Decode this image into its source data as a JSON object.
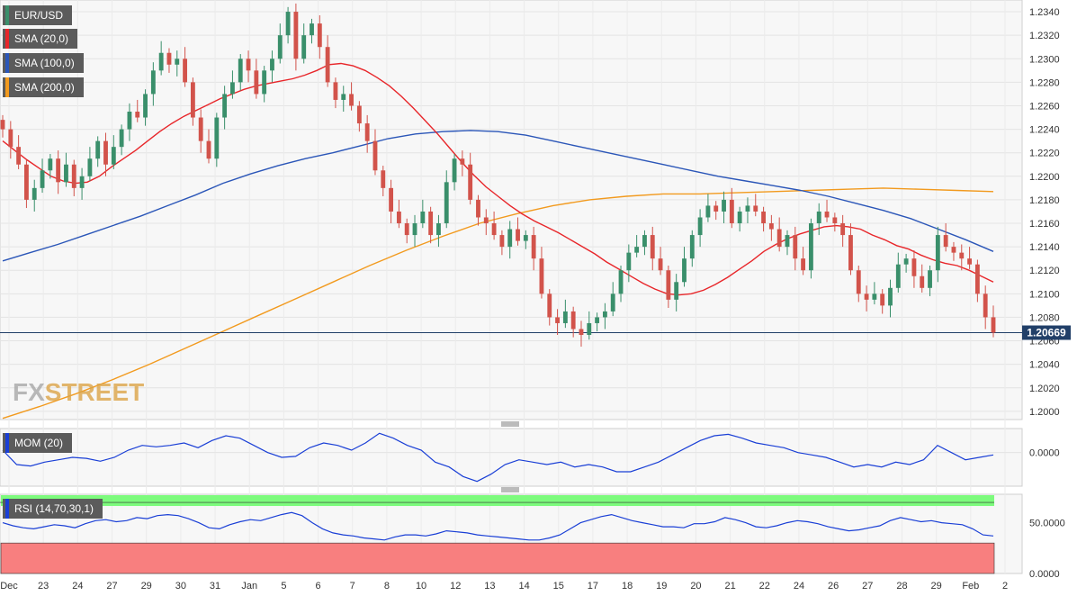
{
  "legend": {
    "symbol": "EUR/USD",
    "sma20": "SMA (20,0)",
    "sma100": "SMA (100,0)",
    "sma200": "SMA (200,0)"
  },
  "colors": {
    "up": "#3a8f6b",
    "down": "#d2534b",
    "sma20": "#e8262a",
    "sma100": "#2b56b8",
    "sma200": "#f29a1e",
    "price_line": "#213f68",
    "mom_line": "#1a3fd6",
    "rsi_line": "#1a3fd6",
    "rsi_band_top": "#7dfb7d",
    "rsi_band_bottom": "#f87f7f",
    "watermark": "#dca447"
  },
  "watermark": {
    "part1": "FX",
    "part2": "STREET"
  },
  "current_price": "1.20669",
  "mom": {
    "label": "MOM (20)"
  },
  "rsi": {
    "label": "RSI (14,70,30,1)"
  },
  "chart_data": [
    {
      "type": "candlestick",
      "title": "EUR/USD",
      "x_tick_labels": [
        "Dec",
        "23",
        "24",
        "27",
        "29",
        "30",
        "31",
        "Jan",
        "5",
        "6",
        "7",
        "8",
        "10",
        "12",
        "13",
        "14",
        "15",
        "17",
        "18",
        "19",
        "20",
        "21",
        "22",
        "24",
        "26",
        "27",
        "28",
        "29",
        "Feb",
        "2"
      ],
      "ylim": [
        1.1993,
        1.235
      ],
      "y_ticks": [
        "1.2000",
        "1.2020",
        "1.2040",
        "1.2060",
        "1.2080",
        "1.2100",
        "1.2120",
        "1.2140",
        "1.2160",
        "1.2180",
        "1.2200",
        "1.2220",
        "1.2240",
        "1.2260",
        "1.2280",
        "1.2300",
        "1.2320",
        "1.2340"
      ],
      "current_price": 1.20669,
      "close": [
        1.224,
        1.2225,
        1.221,
        1.218,
        1.219,
        1.2205,
        1.2215,
        1.2195,
        1.221,
        1.219,
        1.22,
        1.2215,
        1.223,
        1.221,
        1.2225,
        1.224,
        1.2255,
        1.225,
        1.227,
        1.229,
        1.2305,
        1.2295,
        1.23,
        1.228,
        1.225,
        1.223,
        1.2215,
        1.225,
        1.227,
        1.228,
        1.23,
        1.229,
        1.227,
        1.229,
        1.23,
        1.232,
        1.234,
        1.23,
        1.232,
        1.233,
        1.231,
        1.228,
        1.2265,
        1.227,
        1.226,
        1.2245,
        1.223,
        1.2205,
        1.219,
        1.217,
        1.216,
        1.215,
        1.216,
        1.217,
        1.215,
        1.216,
        1.2195,
        1.2215,
        1.221,
        1.218,
        1.2165,
        1.216,
        1.215,
        1.214,
        1.2155,
        1.2145,
        1.215,
        1.213,
        1.21,
        1.208,
        1.2075,
        1.2085,
        1.207,
        1.2065,
        1.2075,
        1.208,
        1.2085,
        1.21,
        1.212,
        1.2135,
        1.214,
        1.215,
        1.213,
        1.212,
        1.2095,
        1.211,
        1.213,
        1.215,
        1.2165,
        1.2175,
        1.217,
        1.218,
        1.216,
        1.217,
        1.2175,
        1.217,
        1.216,
        1.2155,
        1.214,
        1.215,
        1.213,
        1.212,
        1.216,
        1.217,
        1.2165,
        1.216,
        1.215,
        1.212,
        1.21,
        1.2095,
        1.21,
        1.209,
        1.2105,
        1.2125,
        1.213,
        1.2115,
        1.2105,
        1.212,
        1.215,
        1.214,
        1.2135,
        1.213,
        1.2125,
        1.21,
        1.208,
        1.2067
      ],
      "sma20": [
        1.223,
        1.2222,
        1.2214,
        1.2207,
        1.22,
        1.2196,
        1.2194,
        1.2195,
        1.22,
        1.2208,
        1.2215,
        1.2222,
        1.223,
        1.2238,
        1.2245,
        1.2251,
        1.2256,
        1.2261,
        1.2266,
        1.227,
        1.2274,
        1.2277,
        1.2279,
        1.2281,
        1.2283,
        1.2286,
        1.229,
        1.2295,
        1.2296,
        1.2294,
        1.229,
        1.2284,
        1.2277,
        1.2268,
        1.2258,
        1.2247,
        1.2236,
        1.2224,
        1.2212,
        1.2201,
        1.2191,
        1.2183,
        1.2175,
        1.2168,
        1.2162,
        1.2157,
        1.2152,
        1.2146,
        1.214,
        1.2134,
        1.2127,
        1.2121,
        1.2115,
        1.2109,
        1.2104,
        1.21,
        1.2099,
        1.21,
        1.2103,
        1.2108,
        1.2114,
        1.2121,
        1.2128,
        1.2136,
        1.2142,
        1.2147,
        1.2151,
        1.2154,
        1.2157,
        1.2158,
        1.2157,
        1.2155,
        1.215,
        1.2146,
        1.2141,
        1.2138,
        1.2133,
        1.2129,
        1.2126,
        1.2124,
        1.212,
        1.2115,
        1.211
      ],
      "sma100": [
        1.2128,
        1.2135,
        1.2142,
        1.215,
        1.2158,
        1.2166,
        1.2175,
        1.2184,
        1.2194,
        1.2202,
        1.2209,
        1.2215,
        1.222,
        1.2226,
        1.2232,
        1.2236,
        1.2238,
        1.2239,
        1.2238,
        1.2235,
        1.223,
        1.2225,
        1.222,
        1.2215,
        1.221,
        1.2205,
        1.22,
        1.2196,
        1.2192,
        1.2188,
        1.2183,
        1.2177,
        1.2171,
        1.2164,
        1.2155,
        1.2146,
        1.2136
      ],
      "sma200": [
        1.1994,
        1.2004,
        1.2015,
        1.2027,
        1.204,
        1.2054,
        1.2068,
        1.2082,
        1.2096,
        1.211,
        1.2124,
        1.2137,
        1.2149,
        1.216,
        1.2168,
        1.2175,
        1.218,
        1.2183,
        1.2185,
        1.2185,
        1.2186,
        1.2187,
        1.2188,
        1.2189,
        1.219,
        1.2189,
        1.2188,
        1.2187
      ]
    },
    {
      "type": "line",
      "title": "MOM (20)",
      "y_ticks": [
        "0.0000"
      ],
      "values": [
        0.0005,
        -0.0025,
        -0.0028,
        -0.002,
        -0.0015,
        -0.001,
        -0.0012,
        -0.0018,
        -0.001,
        0.0005,
        0.0015,
        0.0012,
        0.0015,
        0.002,
        0.001,
        0.0025,
        0.0035,
        0.003,
        0.0015,
        0.0,
        -0.001,
        -0.0008,
        0.001,
        0.002,
        0.0015,
        0.0005,
        0.002,
        0.004,
        0.003,
        0.0015,
        0.0005,
        -0.002,
        -0.003,
        -0.005,
        -0.006,
        -0.0045,
        -0.0025,
        -0.0015,
        -0.002,
        -0.0025,
        -0.002,
        -0.003,
        -0.0025,
        -0.003,
        -0.004,
        -0.004,
        -0.003,
        -0.002,
        -0.0005,
        0.001,
        0.0025,
        0.0035,
        0.0038,
        0.003,
        0.002,
        0.0015,
        0.001,
        0.0,
        -0.0005,
        -0.001,
        -0.002,
        -0.003,
        -0.0025,
        -0.003,
        -0.002,
        -0.0025,
        -0.0015,
        0.0015,
        0.0,
        -0.0015,
        -0.001,
        -0.0005
      ]
    },
    {
      "type": "line",
      "title": "RSI (14,70,30,1)",
      "y_ticks": [
        "50.0000",
        "0.0000"
      ],
      "values": [
        50,
        47,
        45,
        44,
        46,
        48,
        47,
        45,
        49,
        52,
        53,
        51,
        52,
        55,
        54,
        57,
        58,
        57,
        54,
        50,
        45,
        44,
        48,
        51,
        53,
        52,
        55,
        58,
        60,
        57,
        50,
        44,
        40,
        38,
        37,
        35,
        34,
        33,
        36,
        38,
        38,
        37,
        39,
        42,
        41,
        40,
        38,
        37,
        36,
        35,
        34,
        33,
        33,
        35,
        38,
        44,
        50,
        53,
        56,
        58,
        55,
        52,
        50,
        48,
        46,
        46,
        45,
        49,
        49,
        51,
        55,
        53,
        50,
        46,
        45,
        47,
        50,
        52,
        51,
        49,
        46,
        44,
        42,
        43,
        45,
        47,
        52,
        55,
        53,
        51,
        52,
        50,
        49,
        48,
        44,
        38,
        37
      ]
    }
  ]
}
